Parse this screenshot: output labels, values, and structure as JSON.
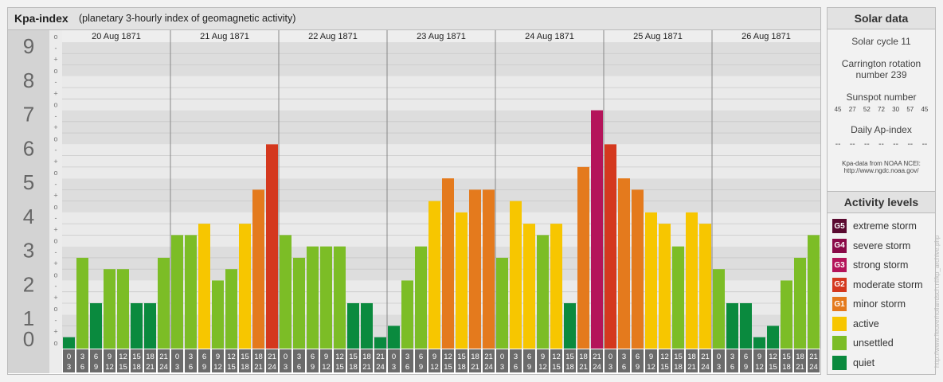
{
  "header": {
    "title": "Kpa-index",
    "subtitle": "(planetary 3-hourly index of geomagnetic activity)"
  },
  "chart_data": {
    "type": "bar",
    "ylim": [
      0,
      9
    ],
    "y_ticks": [
      "0",
      "1",
      "2",
      "3",
      "4",
      "5",
      "6",
      "7",
      "8",
      "9"
    ],
    "sub_ticks": [
      "o",
      "+",
      "-"
    ],
    "days": [
      "20 Aug 1871",
      "21 Aug 1871",
      "22 Aug 1871",
      "23 Aug 1871",
      "24 Aug 1871",
      "25 Aug 1871",
      "26 Aug 1871"
    ],
    "intervals": [
      [
        "0",
        "3"
      ],
      [
        "3",
        "6"
      ],
      [
        "6",
        "9"
      ],
      [
        "9",
        "12"
      ],
      [
        "12",
        "15"
      ],
      [
        "15",
        "18"
      ],
      [
        "18",
        "21"
      ],
      [
        "21",
        "24"
      ]
    ],
    "values": [
      [
        0.333,
        2.667,
        1.333,
        2.333,
        2.333,
        1.333,
        1.333,
        2.667
      ],
      [
        3.333,
        3.333,
        3.667,
        2.0,
        2.333,
        3.667,
        4.667,
        6.0
      ],
      [
        3.333,
        2.667,
        3.0,
        3.0,
        3.0,
        1.333,
        1.333,
        0.333
      ],
      [
        0.667,
        2.0,
        3.0,
        4.333,
        5.0,
        4.0,
        4.667,
        4.667
      ],
      [
        2.667,
        4.333,
        3.667,
        3.333,
        3.667,
        1.333,
        5.333,
        7.0
      ],
      [
        6.0,
        5.0,
        4.667,
        4.0,
        3.667,
        3.0,
        4.0,
        3.667
      ],
      [
        2.333,
        1.333,
        1.333,
        0.333,
        0.667,
        2.0,
        2.667,
        3.333
      ]
    ]
  },
  "activity_colors": {
    "quiet": "#0a8a3e",
    "unsettled": "#7cbd26",
    "active": "#f7c600",
    "G1": "#e47a1d",
    "G2": "#d4381e",
    "G3": "#b4145a",
    "G4": "#8a0a48",
    "G5": "#5a0a30"
  },
  "solar": {
    "title": "Solar data",
    "cycle": "Solar cycle 11",
    "carrington_line1": "Carrington rotation",
    "carrington_line2": "number 239",
    "sunspot_title": "Sunspot number",
    "sunspot_values": [
      "45",
      "27",
      "52",
      "72",
      "30",
      "57",
      "45"
    ],
    "ap_title": "Daily Ap-index",
    "ap_values": [
      "--",
      "--",
      "--",
      "--",
      "--",
      "--",
      "--"
    ],
    "source_line1": "Kpa-data from NOAA NCEI:",
    "source_line2": "http://www.ngdc.noaa.gov/"
  },
  "levels": {
    "title": "Activity levels",
    "items": [
      {
        "badge": "G5",
        "label": "extreme storm",
        "color": "#5a0a30"
      },
      {
        "badge": "G4",
        "label": "severe storm",
        "color": "#8a0a48"
      },
      {
        "badge": "G3",
        "label": "strong storm",
        "color": "#b4145a"
      },
      {
        "badge": "G2",
        "label": "moderate storm",
        "color": "#d4381e"
      },
      {
        "badge": "G1",
        "label": "minor storm",
        "color": "#e47a1d"
      },
      {
        "badge": "",
        "label": "active",
        "color": "#f7c600"
      },
      {
        "badge": "",
        "label": "unsettled",
        "color": "#7cbd26"
      },
      {
        "badge": "",
        "label": "quiet",
        "color": "#0a8a3e"
      }
    ]
  },
  "credit": "http://www.fleuverhollandsch.nl/kp_archive.php"
}
